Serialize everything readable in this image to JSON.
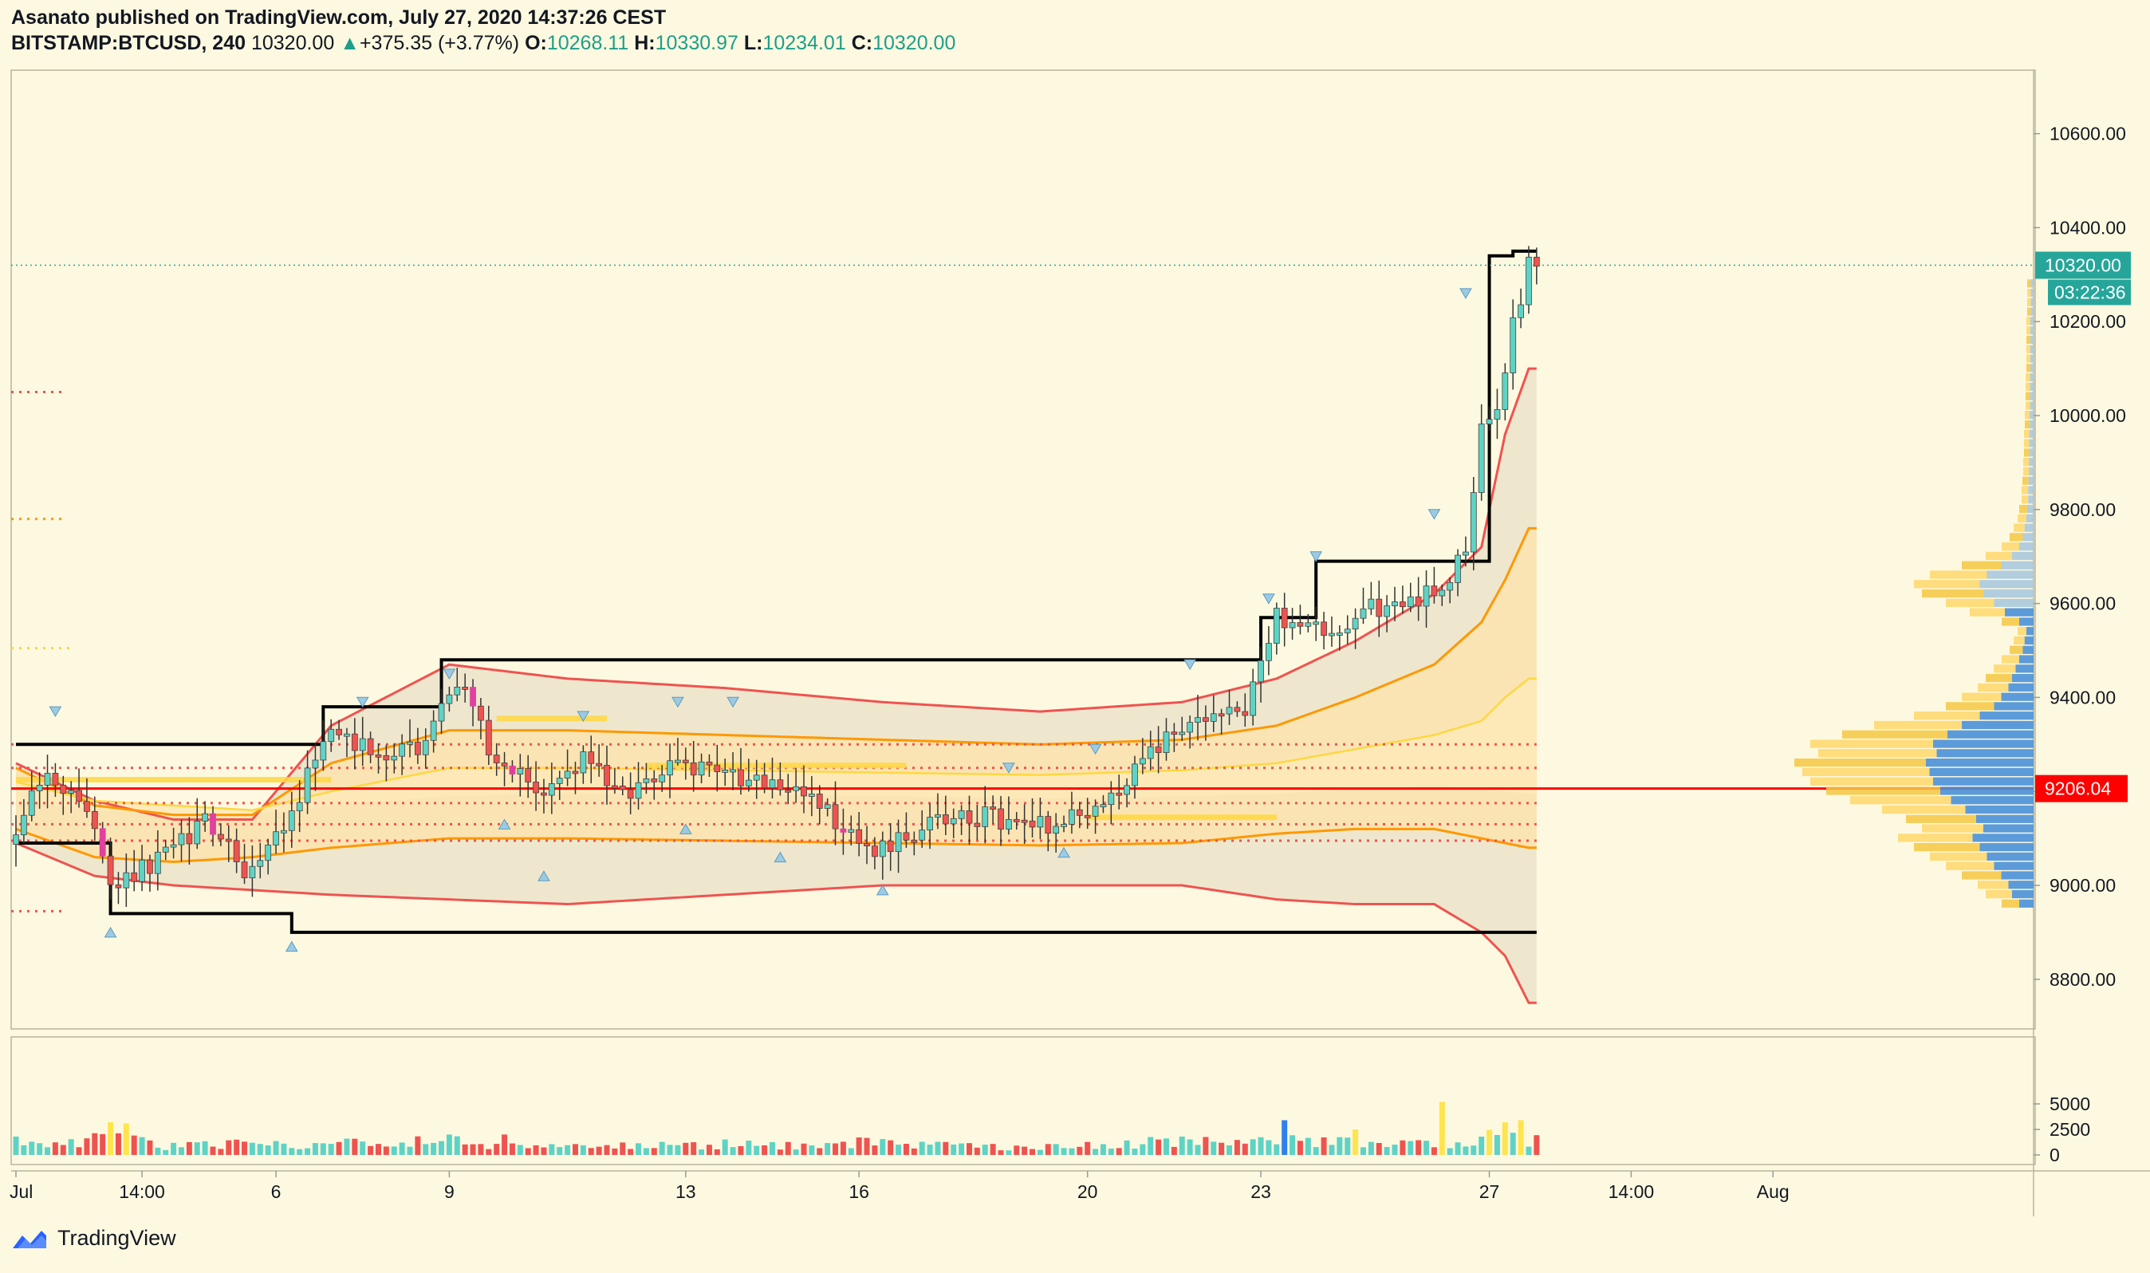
{
  "header": {
    "published": "Asanato published on TradingView.com, July 27, 2020 14:37:26 CEST",
    "symbol": "BITSTAMP:BTCUSD, 240",
    "last": "10320.00",
    "change": "+375.35 (+3.77%)",
    "o_label": "O:",
    "o": "10268.11",
    "h_label": "H:",
    "h": "10330.97",
    "l_label": "L:",
    "l": "10234.01",
    "c_label": "C:",
    "c": "10320.00"
  },
  "footer": {
    "brand": "TradingView"
  },
  "colors": {
    "background": "#fdf9e0",
    "up": "#5ed3c5",
    "down": "#ef5350",
    "highlight": "#e040a0",
    "band_outer": "#ef5350",
    "band_mid": "#ff9800",
    "band_inner": "#ffd740",
    "donchian": "#000000",
    "poc_line": "#ff0000",
    "price_tag": "#26a69a"
  },
  "chart_data": {
    "type": "candlestick",
    "ylim": [
      8620,
      10760
    ],
    "y_ticks": [
      {
        "v": 10600,
        "label": "10600.00"
      },
      {
        "v": 10400,
        "label": "10400.00"
      },
      {
        "v": 10200,
        "label": "10200.00"
      },
      {
        "v": 10000,
        "label": "10000.00"
      },
      {
        "v": 9800,
        "label": "9800.00"
      },
      {
        "v": 9600,
        "label": "9600.00"
      },
      {
        "v": 9400,
        "label": "9400.00"
      },
      {
        "v": 9200,
        "label": "9200.00"
      },
      {
        "v": 9000,
        "label": "9000.00"
      },
      {
        "v": 8800,
        "label": "8800.00"
      }
    ],
    "x_ticks": [
      {
        "bar": 0,
        "label": "Jul"
      },
      {
        "bar": 16,
        "label": "14:00"
      },
      {
        "bar": 33,
        "label": "6"
      },
      {
        "bar": 55,
        "label": "9"
      },
      {
        "bar": 85,
        "label": "13"
      },
      {
        "bar": 107,
        "label": "16"
      },
      {
        "bar": 136,
        "label": "20"
      },
      {
        "bar": 158,
        "label": "23"
      },
      {
        "bar": 187,
        "label": "27"
      },
      {
        "bar": 205,
        "label": "14:00"
      },
      {
        "bar": 223,
        "label": "Aug"
      }
    ],
    "last_price": {
      "v": 10320,
      "label": "10320.00",
      "countdown": "03:22:36"
    },
    "poc": {
      "v": 9206,
      "label": "9206.04"
    },
    "volume_ticks": [
      {
        "v": 5000,
        "label": "5000"
      },
      {
        "v": 2500,
        "label": "2500"
      },
      {
        "v": 0,
        "label": "0"
      }
    ],
    "volume_max": 5800,
    "anchors": [
      [
        0,
        9130,
        2000
      ],
      [
        4,
        9240,
        1000
      ],
      [
        9,
        9170,
        1400
      ],
      [
        12,
        9010,
        3600
      ],
      [
        18,
        9050,
        900
      ],
      [
        24,
        9130,
        1100
      ],
      [
        30,
        9020,
        1200
      ],
      [
        34,
        9120,
        900
      ],
      [
        40,
        9350,
        1300
      ],
      [
        46,
        9260,
        1000
      ],
      [
        52,
        9300,
        1400
      ],
      [
        56,
        9440,
        1500
      ],
      [
        60,
        9300,
        1100
      ],
      [
        66,
        9190,
        1000
      ],
      [
        72,
        9270,
        1000
      ],
      [
        78,
        9190,
        900
      ],
      [
        84,
        9270,
        1000
      ],
      [
        90,
        9230,
        1100
      ],
      [
        96,
        9220,
        900
      ],
      [
        102,
        9170,
        1000
      ],
      [
        108,
        9070,
        1400
      ],
      [
        114,
        9110,
        1100
      ],
      [
        120,
        9150,
        900
      ],
      [
        126,
        9140,
        900
      ],
      [
        132,
        9130,
        800
      ],
      [
        138,
        9170,
        1000
      ],
      [
        144,
        9290,
        1300
      ],
      [
        150,
        9350,
        1300
      ],
      [
        156,
        9380,
        1200
      ],
      [
        160,
        9570,
        1700
      ],
      [
        166,
        9540,
        1300
      ],
      [
        172,
        9590,
        1500
      ],
      [
        178,
        9600,
        1200
      ],
      [
        184,
        9700,
        1100
      ],
      [
        186,
        9960,
        2500
      ],
      [
        188,
        10000,
        1600
      ],
      [
        190,
        10190,
        2000
      ],
      [
        192,
        10320,
        1500
      ]
    ],
    "volume_spikes": [
      [
        12,
        3200
      ],
      [
        55,
        2000
      ],
      [
        62,
        2000
      ],
      [
        161,
        3400
      ],
      [
        170,
        2500
      ],
      [
        181,
        5200
      ],
      [
        189,
        3200
      ],
      [
        191,
        3400
      ]
    ],
    "magenta_bars": [
      11,
      25,
      58,
      63,
      105
    ],
    "bands": {
      "bars": [
        0,
        10,
        20,
        30,
        40,
        55,
        70,
        90,
        110,
        130,
        148,
        160,
        170,
        180,
        186,
        189,
        192
      ],
      "upper_outer": [
        9260,
        9180,
        9140,
        9140,
        9340,
        9470,
        9440,
        9420,
        9390,
        9370,
        9390,
        9440,
        9520,
        9620,
        9720,
        9960,
        10100
      ],
      "upper_mid": [
        9250,
        9170,
        9150,
        9150,
        9260,
        9330,
        9330,
        9320,
        9310,
        9300,
        9310,
        9340,
        9400,
        9470,
        9560,
        9650,
        9760
      ],
      "upper_inner": [
        9220,
        9180,
        9170,
        9160,
        9200,
        9250,
        9250,
        9245,
        9240,
        9235,
        9245,
        9260,
        9290,
        9320,
        9350,
        9400,
        9440
      ],
      "lower_inner": [
        9180,
        9160,
        9150,
        9150,
        9170,
        9190,
        9195,
        9195,
        9190,
        9185,
        9190,
        9195,
        9205,
        9210,
        9205,
        9200,
        9195
      ],
      "lower_mid": [
        9120,
        9060,
        9050,
        9060,
        9080,
        9100,
        9100,
        9095,
        9090,
        9085,
        9090,
        9110,
        9120,
        9120,
        9100,
        9090,
        9080
      ],
      "lower_outer": [
        9090,
        9020,
        9000,
        8990,
        8980,
        8970,
        8960,
        8980,
        9000,
        9000,
        9000,
        8970,
        8960,
        8960,
        8900,
        8850,
        8750
      ]
    },
    "donchian_upper": [
      [
        0,
        9300
      ],
      [
        39,
        9300
      ],
      [
        39,
        9380
      ],
      [
        54,
        9380
      ],
      [
        54,
        9480
      ],
      [
        158,
        9480
      ],
      [
        158,
        9570
      ],
      [
        165,
        9570
      ],
      [
        165,
        9690
      ],
      [
        187,
        9690
      ],
      [
        187,
        10340
      ],
      [
        190,
        10340
      ],
      [
        190,
        10350
      ],
      [
        193,
        10350
      ]
    ],
    "donchian_lower": [
      [
        0,
        9090
      ],
      [
        12,
        9090
      ],
      [
        12,
        8940
      ],
      [
        35,
        8940
      ],
      [
        35,
        8900
      ],
      [
        193,
        8900
      ]
    ],
    "dotted_levels": [
      {
        "v": 10050,
        "color": "#ef5350",
        "x0": 0,
        "x1": 6
      },
      {
        "v": 9780,
        "color": "#ff9800",
        "x0": 0,
        "x1": 6
      },
      {
        "v": 9505,
        "color": "#ffd740",
        "x0": 0,
        "x1": 7
      },
      {
        "v": 8945,
        "color": "#ef5350",
        "x0": 0,
        "x1": 6
      },
      {
        "v": 9300,
        "color": "#ef5350",
        "x0": 0,
        "x1": 193
      },
      {
        "v": 9250,
        "color": "#ef5350",
        "x0": 0,
        "x1": 193
      },
      {
        "v": 9175,
        "color": "#ef5350",
        "x0": 0,
        "x1": 193
      },
      {
        "v": 9130,
        "color": "#ef5350",
        "x0": 0,
        "x1": 193
      },
      {
        "v": 9095,
        "color": "#ef5350",
        "x0": 0,
        "x1": 193
      }
    ],
    "yellow_segments": [
      [
        61,
        75,
        9355
      ],
      [
        80,
        113,
        9255
      ],
      [
        136,
        160,
        9145
      ],
      [
        0,
        40,
        9225
      ]
    ],
    "markers_down": [
      [
        5,
        9370
      ],
      [
        44,
        9390
      ],
      [
        55,
        9450
      ],
      [
        72,
        9360
      ],
      [
        84,
        9390
      ],
      [
        91,
        9390
      ],
      [
        126,
        9250
      ],
      [
        137,
        9290
      ],
      [
        149,
        9470
      ],
      [
        159,
        9610
      ],
      [
        165,
        9700
      ],
      [
        180,
        9790
      ],
      [
        184,
        10260
      ]
    ],
    "markers_up": [
      [
        12,
        8900
      ],
      [
        35,
        8870
      ],
      [
        62,
        9130
      ],
      [
        67,
        9020
      ],
      [
        85,
        9120
      ],
      [
        97,
        9060
      ],
      [
        110,
        8990
      ],
      [
        133,
        9070
      ]
    ],
    "profile": {
      "bins_from": 8950,
      "bin_step": 20,
      "total": [
        40,
        60,
        70,
        90,
        110,
        130,
        150,
        170,
        140,
        160,
        190,
        230,
        260,
        280,
        290,
        300,
        270,
        280,
        240,
        200,
        150,
        110,
        90,
        70,
        60,
        50,
        40,
        30,
        25,
        20,
        40,
        80,
        110,
        140,
        150,
        130,
        90,
        60,
        40,
        30,
        25,
        20,
        18,
        15,
        15,
        14,
        13,
        13,
        12,
        12,
        12,
        11,
        11,
        10,
        10,
        10,
        10,
        9,
        9,
        9,
        9,
        9,
        9,
        8,
        8,
        8,
        8
      ],
      "blue_frac": 0.45
    }
  }
}
